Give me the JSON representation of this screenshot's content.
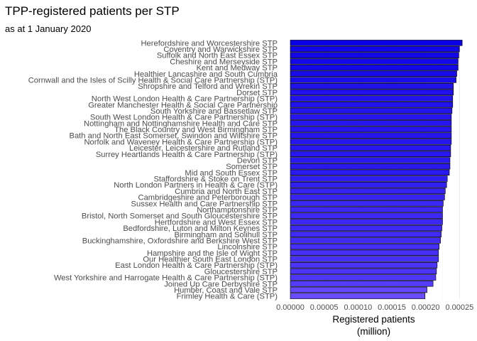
{
  "chart_data": {
    "type": "bar",
    "orientation": "horizontal",
    "title": "TPP-registered patients per STP",
    "subtitle": "as at 1 January 2020",
    "xlabel": [
      "Registered patients",
      "(million)"
    ],
    "ylabel": "",
    "xlim": [
      0,
      0.000257
    ],
    "x_ticks": [
      0,
      5e-05,
      0.0001,
      0.00015,
      0.0002,
      0.00025
    ],
    "x_tick_labels": [
      "0.00000",
      "0.00005",
      "0.00010",
      "0.00015",
      "0.00020",
      "0.00025"
    ],
    "grid": true,
    "legend": "none",
    "color_low": "#6a4cff",
    "color_high": "#0a00e6",
    "categories": [
      "Herefordshire and Worcestershire STP",
      "Coventry and Warwickshire STP",
      "Suffolk and North East Essex STP",
      "Cheshire and Merseyside STP",
      "Kent and Medway STP",
      "Healthier Lancashire and South Cumbria",
      "Cornwall and the Isles of Scilly Health & Social Care Partnership (STP)",
      "Shropshire and Telford and Wrekin STP",
      "Dorset STP",
      "North West London Health & Care Partnership (STP)",
      "Greater Manchester Health & Social Care Partnership",
      "South Yorkshire and Bassetlaw STP",
      "South West London Health & Care Partnership (STP)",
      "Nottingham and Nottinghamshire Health and Care STP",
      "The Black Country and West Birmingham STP",
      "Bath and North East Somerset, Swindon and Wiltshire STP",
      "Norfolk and Waveney Health & Care Partnership (STP)",
      "Leicester, Leicestershire and Rutland STP",
      "Surrey Heartlands Health & Care Partnership (STP)",
      "Devon STP",
      "Somerset STP",
      "Mid and South Essex STP",
      "Staffordshire & Stoke on Trent STP",
      "North London Partners in Health & Care (STP)",
      "Cumbria and North East STP",
      "Cambridgeshire and Peterborough STP",
      "Sussex Health and Care Partnership STP",
      "Northamptonshire STP",
      "Bristol, North Somerset and South Gloucestershire STP",
      "Hertfordshire and West Essex STP",
      "Bedfordshire, Luton and Milton Keynes STP",
      "Birmingham and Solihull STP",
      "Buckinghamshire, Oxfordshire and Berkshire West STP",
      "Lincolnshire STP",
      "Hampshire and the Isle of Wight STP",
      "Our Healthier South East London STP",
      "East London Health & Care Partnership (STP)",
      "Gloucestershire STP",
      "West Yorkshire and Harrogate Health & Care Partnership (STP)",
      "Joined Up Care Derbyshire STP",
      "Humber, Coast and Vale STP",
      "Frimley Health & Care (STP)"
    ],
    "values": [
      0.000254,
      0.00025,
      0.000249,
      0.000248,
      0.000248,
      0.000246,
      0.000245,
      0.000241,
      0.000241,
      0.00024,
      0.00024,
      0.000239,
      0.000238,
      0.000238,
      0.000238,
      0.000238,
      0.000238,
      0.000237,
      0.000237,
      0.000236,
      0.000236,
      0.000235,
      0.000232,
      0.000231,
      0.000229,
      0.000228,
      0.000226,
      0.000225,
      0.000225,
      0.000225,
      0.000224,
      0.000223,
      0.000222,
      0.00022,
      0.000219,
      0.000219,
      0.000217,
      0.000216,
      0.000215,
      0.000211,
      0.000202,
      0.000199
    ]
  }
}
